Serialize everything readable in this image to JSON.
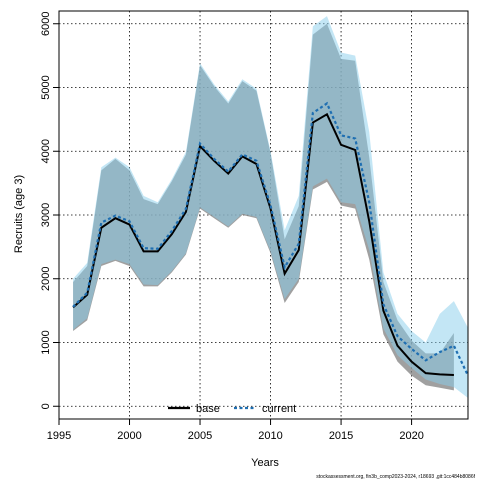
{
  "chart_data": {
    "type": "line",
    "title": "",
    "xlabel": "Years",
    "ylabel": "Recruits (age 3)",
    "xlim": [
      1995,
      2024
    ],
    "ylim": [
      -200,
      6200
    ],
    "x_ticks": [
      1995,
      2000,
      2005,
      2010,
      2015,
      2020
    ],
    "y_ticks": [
      0,
      1000,
      2000,
      3000,
      4000,
      5000,
      6000
    ],
    "grid": "dotted",
    "legend_position": "bottom",
    "x": [
      1996,
      1997,
      1998,
      1999,
      2000,
      2001,
      2002,
      2003,
      2004,
      2005,
      2006,
      2007,
      2008,
      2009,
      2010,
      2011,
      2012,
      2013,
      2014,
      2015,
      2016,
      2017,
      2018,
      2019,
      2020,
      2021,
      2022,
      2023,
      2024
    ],
    "series": [
      {
        "name": "base",
        "color": "#000000",
        "line_style": "solid",
        "band_color": "#808080",
        "values": [
          1550,
          1750,
          2800,
          2950,
          2850,
          2430,
          2430,
          2700,
          3050,
          4080,
          3850,
          3650,
          3920,
          3800,
          3100,
          2080,
          2450,
          4450,
          4580,
          4100,
          4020,
          2900,
          1500,
          950,
          700,
          520,
          500,
          490,
          null
        ],
        "lower": [
          1180,
          1350,
          2200,
          2280,
          2200,
          1880,
          1880,
          2100,
          2380,
          3100,
          2950,
          2800,
          3000,
          2950,
          2400,
          1620,
          1950,
          3400,
          3520,
          3150,
          3100,
          2300,
          1130,
          700,
          480,
          330,
          290,
          250,
          null
        ],
        "upper": [
          1950,
          2200,
          3700,
          3880,
          3700,
          3250,
          3170,
          3530,
          3950,
          5350,
          5020,
          4750,
          5100,
          4950,
          3970,
          2620,
          3140,
          5830,
          6000,
          5450,
          5420,
          3900,
          1950,
          1350,
          1030,
          830,
          830,
          1150,
          null
        ]
      },
      {
        "name": "current",
        "color": "#1f6fb2",
        "line_style": "dashed",
        "band_color": "#87ceeb",
        "values": [
          1560,
          1780,
          2880,
          2990,
          2900,
          2480,
          2470,
          2750,
          3100,
          4120,
          3880,
          3680,
          3950,
          3850,
          3150,
          2180,
          2550,
          4600,
          4750,
          4250,
          4200,
          3200,
          1600,
          1100,
          900,
          720,
          850,
          950,
          480
        ],
        "lower": [
          1200,
          1380,
          2230,
          2300,
          2230,
          1910,
          1900,
          2120,
          2400,
          3120,
          2970,
          2820,
          3020,
          2970,
          2430,
          1680,
          2000,
          3450,
          3570,
          3200,
          3170,
          2450,
          1220,
          800,
          600,
          420,
          350,
          300,
          130
        ],
        "upper": [
          2000,
          2250,
          3750,
          3900,
          3750,
          3300,
          3200,
          3560,
          3990,
          5380,
          5050,
          4780,
          5130,
          4980,
          4000,
          2760,
          3300,
          5960,
          6120,
          5550,
          5500,
          4300,
          2100,
          1450,
          1180,
          1000,
          1450,
          1650,
          1230
        ]
      }
    ]
  },
  "credit": "stockassessment.org, fin3b_comp2023-2024, r18693 ,git:1cc484b8086f"
}
